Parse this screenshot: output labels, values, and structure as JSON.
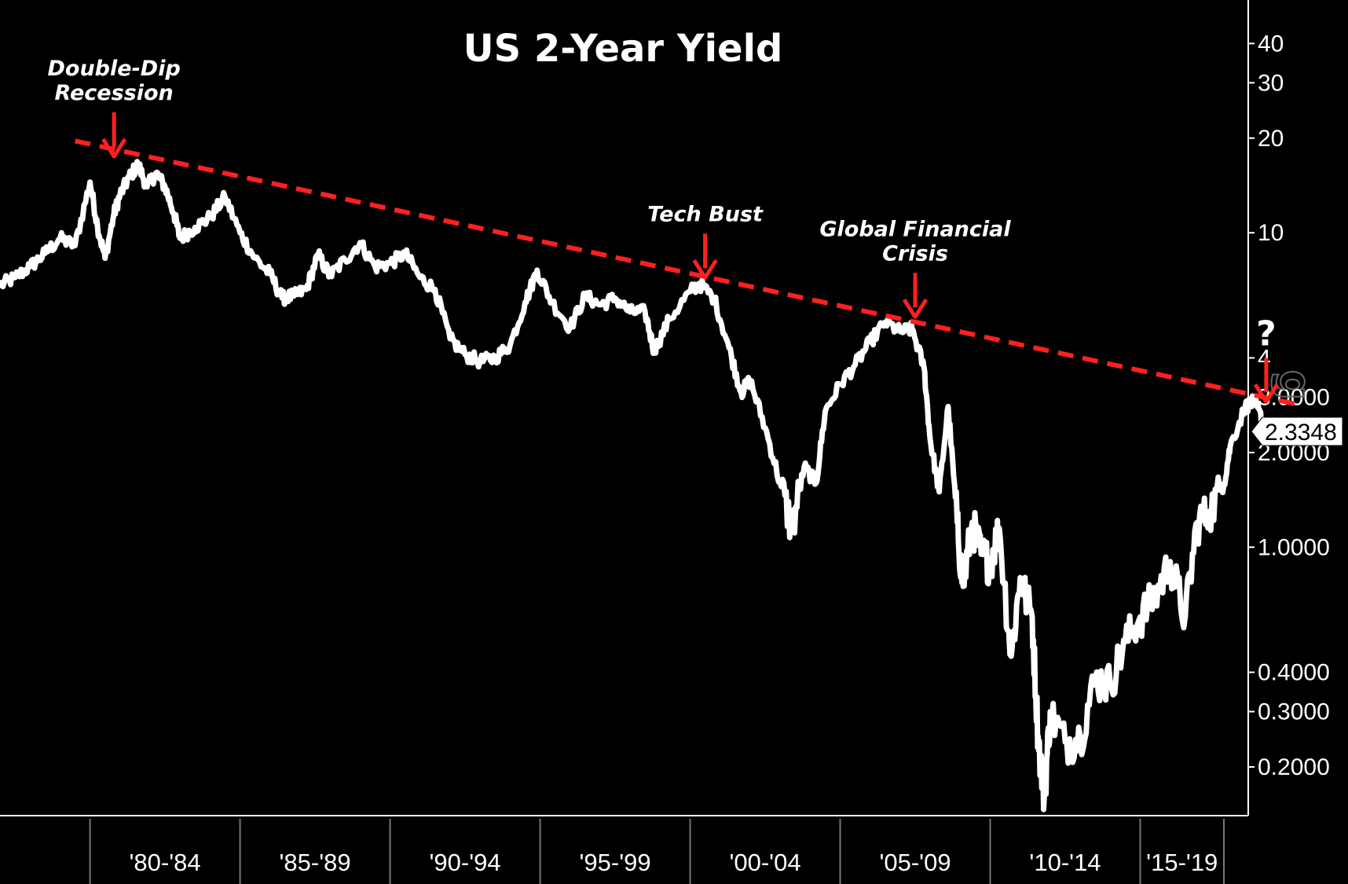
{
  "chart_data": {
    "type": "line",
    "title": "US 2-Year Yield",
    "xlabel": "",
    "ylabel": "",
    "y_scale": "log",
    "x_range": [
      1977,
      2018.6
    ],
    "ylim": [
      0.14,
      55
    ],
    "y_ticks": [
      {
        "value": 40,
        "label": "40"
      },
      {
        "value": 30,
        "label": "30"
      },
      {
        "value": 20,
        "label": "20"
      },
      {
        "value": 10,
        "label": "10"
      },
      {
        "value": 4,
        "label": "4"
      },
      {
        "value": 3,
        "label": "3.0000"
      },
      {
        "value": 2,
        "label": "2.0000"
      },
      {
        "value": 1,
        "label": "1.0000"
      },
      {
        "value": 0.4,
        "label": "0.4000"
      },
      {
        "value": 0.3,
        "label": "0.3000"
      },
      {
        "value": 0.2,
        "label": "0.2000"
      }
    ],
    "x_categories": [
      {
        "label": "'80-'84",
        "start": 1980,
        "end": 1985
      },
      {
        "label": "'85-'89",
        "start": 1985,
        "end": 1990
      },
      {
        "label": "'90-'94",
        "start": 1990,
        "end": 1995
      },
      {
        "label": "'95-'99",
        "start": 1995,
        "end": 2000
      },
      {
        "label": "'00-'04",
        "start": 2000,
        "end": 2005
      },
      {
        "label": "'05-'09",
        "start": 2005,
        "end": 2010
      },
      {
        "label": "'10-'14",
        "start": 2010,
        "end": 2015
      },
      {
        "label": "'15-'19",
        "start": 2015,
        "end": 2020
      }
    ],
    "series": [
      {
        "name": "US 2-Year Yield",
        "color": "#ffffff",
        "points": [
          [
            1977.0,
            6.8
          ],
          [
            1977.5,
            7.2
          ],
          [
            1978.0,
            7.8
          ],
          [
            1978.5,
            8.6
          ],
          [
            1979.0,
            9.6
          ],
          [
            1979.5,
            9.1
          ],
          [
            1980.0,
            14.5
          ],
          [
            1980.25,
            10.5
          ],
          [
            1980.5,
            8.3
          ],
          [
            1980.8,
            11.5
          ],
          [
            1981.0,
            13.2
          ],
          [
            1981.3,
            15.0
          ],
          [
            1981.6,
            16.5
          ],
          [
            1981.9,
            14.0
          ],
          [
            1982.2,
            15.5
          ],
          [
            1982.5,
            14.0
          ],
          [
            1982.8,
            11.5
          ],
          [
            1983.0,
            9.6
          ],
          [
            1983.5,
            10.4
          ],
          [
            1984.0,
            11.2
          ],
          [
            1984.5,
            13.0
          ],
          [
            1985.0,
            10.0
          ],
          [
            1985.5,
            8.3
          ],
          [
            1986.0,
            7.4
          ],
          [
            1986.4,
            6.2
          ],
          [
            1986.8,
            6.3
          ],
          [
            1987.2,
            6.6
          ],
          [
            1987.6,
            8.5
          ],
          [
            1988.0,
            7.3
          ],
          [
            1988.5,
            8.2
          ],
          [
            1989.0,
            9.3
          ],
          [
            1989.5,
            7.8
          ],
          [
            1990.0,
            8.0
          ],
          [
            1990.5,
            8.6
          ],
          [
            1991.0,
            7.2
          ],
          [
            1991.5,
            6.6
          ],
          [
            1992.0,
            4.6
          ],
          [
            1992.5,
            4.1
          ],
          [
            1993.0,
            3.9
          ],
          [
            1993.5,
            4.0
          ],
          [
            1994.0,
            4.4
          ],
          [
            1994.5,
            6.0
          ],
          [
            1994.9,
            7.6
          ],
          [
            1995.4,
            6.0
          ],
          [
            1996.0,
            5.0
          ],
          [
            1996.5,
            6.3
          ],
          [
            1997.0,
            5.9
          ],
          [
            1997.5,
            6.2
          ],
          [
            1998.0,
            5.6
          ],
          [
            1998.5,
            5.6
          ],
          [
            1998.8,
            4.2
          ],
          [
            1999.3,
            5.3
          ],
          [
            2000.0,
            6.5
          ],
          [
            2000.3,
            6.9
          ],
          [
            2000.8,
            6.2
          ],
          [
            2001.3,
            4.3
          ],
          [
            2001.7,
            3.1
          ],
          [
            2002.0,
            3.4
          ],
          [
            2002.5,
            2.4
          ],
          [
            2003.0,
            1.6
          ],
          [
            2003.4,
            1.15
          ],
          [
            2003.8,
            1.8
          ],
          [
            2004.2,
            1.6
          ],
          [
            2004.5,
            2.7
          ],
          [
            2005.0,
            3.3
          ],
          [
            2005.5,
            3.8
          ],
          [
            2006.0,
            4.5
          ],
          [
            2006.5,
            5.2
          ],
          [
            2007.0,
            4.85
          ],
          [
            2007.4,
            4.95
          ],
          [
            2007.8,
            3.7
          ],
          [
            2008.0,
            2.2
          ],
          [
            2008.3,
            1.5
          ],
          [
            2008.6,
            2.8
          ],
          [
            2008.9,
            1.2
          ],
          [
            2009.1,
            0.75
          ],
          [
            2009.4,
            1.2
          ],
          [
            2009.7,
            0.95
          ],
          [
            2010.0,
            0.9
          ],
          [
            2010.3,
            1.15
          ],
          [
            2010.7,
            0.45
          ],
          [
            2011.0,
            0.8
          ],
          [
            2011.4,
            0.6
          ],
          [
            2011.6,
            0.25
          ],
          [
            2011.8,
            0.16
          ],
          [
            2012.0,
            0.3
          ],
          [
            2012.5,
            0.24
          ],
          [
            2013.0,
            0.25
          ],
          [
            2013.5,
            0.38
          ],
          [
            2014.0,
            0.37
          ],
          [
            2014.5,
            0.5
          ],
          [
            2015.0,
            0.6
          ],
          [
            2015.5,
            0.7
          ],
          [
            2016.0,
            0.9
          ],
          [
            2016.5,
            0.6
          ],
          [
            2016.9,
            1.2
          ],
          [
            2017.3,
            1.3
          ],
          [
            2017.8,
            1.6
          ],
          [
            2018.0,
            2.1
          ],
          [
            2018.5,
            2.8
          ],
          [
            2018.8,
            2.9
          ],
          [
            2019.1,
            2.5
          ],
          [
            2019.35,
            2.3348
          ]
        ]
      }
    ],
    "trendline": {
      "color": "#ff2020",
      "style": "dashed",
      "points": [
        [
          1979.5,
          19.6
        ],
        [
          2020.2,
          2.85
        ]
      ]
    },
    "annotations": [
      {
        "id": "double-dip",
        "lines": [
          "Double-Dip",
          "Recession"
        ],
        "arrow_to": [
          1980.8,
          17.5
        ]
      },
      {
        "id": "tech-bust",
        "lines": [
          "Tech Bust"
        ],
        "arrow_to": [
          2000.5,
          7.2
        ]
      },
      {
        "id": "gfc",
        "lines": [
          "Global Financial",
          "Crisis"
        ],
        "arrow_to": [
          2007.5,
          5.4
        ]
      },
      {
        "id": "question",
        "lines": [
          "?"
        ],
        "arrow_to": [
          2019.2,
          2.9
        ]
      }
    ],
    "last_value_label": "2.3348",
    "watermark": "g"
  }
}
